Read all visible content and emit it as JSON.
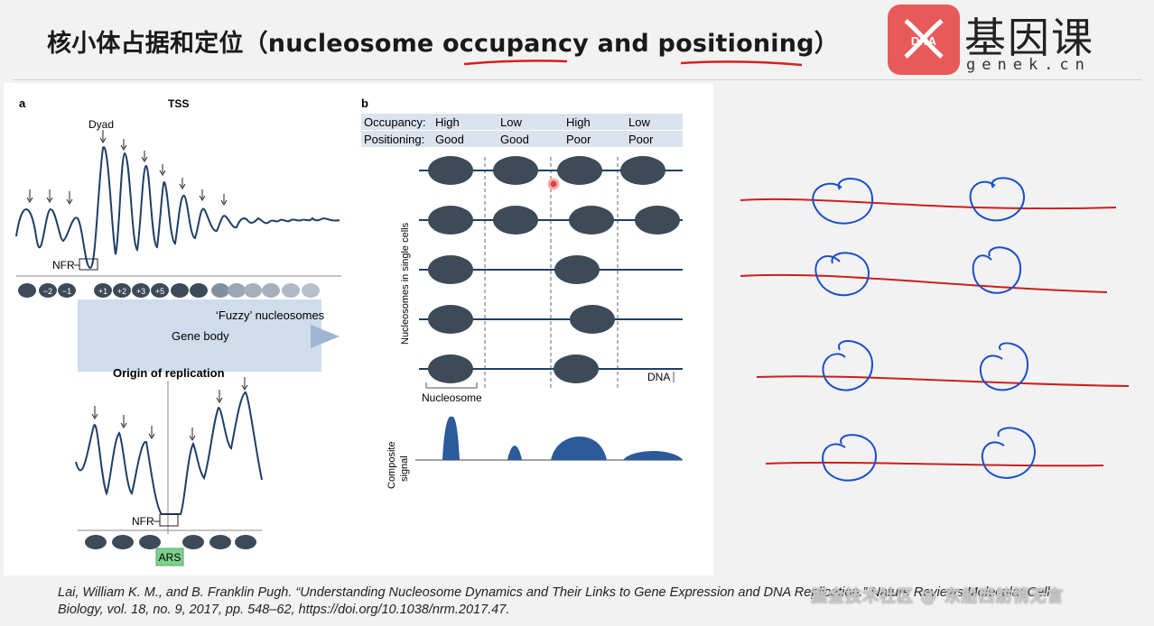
{
  "slide": {
    "title": "核小体占据和定位（nucleosome occupancy and positioning）",
    "logo_cn": "基因课",
    "logo_en": "genek.cn",
    "logo_mark": "DNA",
    "citation_line1": "Lai, William K. M., and B. Franklin Pugh. “Understanding Nucleosome Dynamics and Their Links to Gene Expression and DNA Replication.” Nature Reviews Molecular Cell",
    "citation_line2": "Biology, vol. 18, no. 9, 2017, pp. 548–62, https://doi.org/10.1038/nrm.2017.47.",
    "watermark": "掘金技术社区 @ 东船西舫悄无言",
    "accent_underline_color": "#d42020",
    "annotation_color": "#1a4fc8",
    "annotation_line_color": "#cc1f1f"
  },
  "panel_a": {
    "letter": "a",
    "tss": "TSS",
    "dyad": "Dyad",
    "nfr": "NFR",
    "nucleosome_labels": [
      "−2",
      "−1",
      "+1",
      "+2",
      "+3",
      "+5"
    ],
    "fuzzy": "‘Fuzzy’ nucleosomes",
    "gene_body": "Gene body",
    "origin": "Origin of replication",
    "nfr2": "NFR",
    "ars": "ARS"
  },
  "panel_b": {
    "letter": "b",
    "occupancy_label": "Occupancy:",
    "positioning_label": "Positioning:",
    "occupancy": [
      "High",
      "Low",
      "High",
      "Low"
    ],
    "positioning": [
      "Good",
      "Good",
      "Poor",
      "Poor"
    ],
    "y_label": "Nucleosomes in single cells",
    "dna": "DNA",
    "nucleosome": "Nucleosome",
    "composite_label_1": "Composite",
    "composite_label_2": "signal"
  }
}
